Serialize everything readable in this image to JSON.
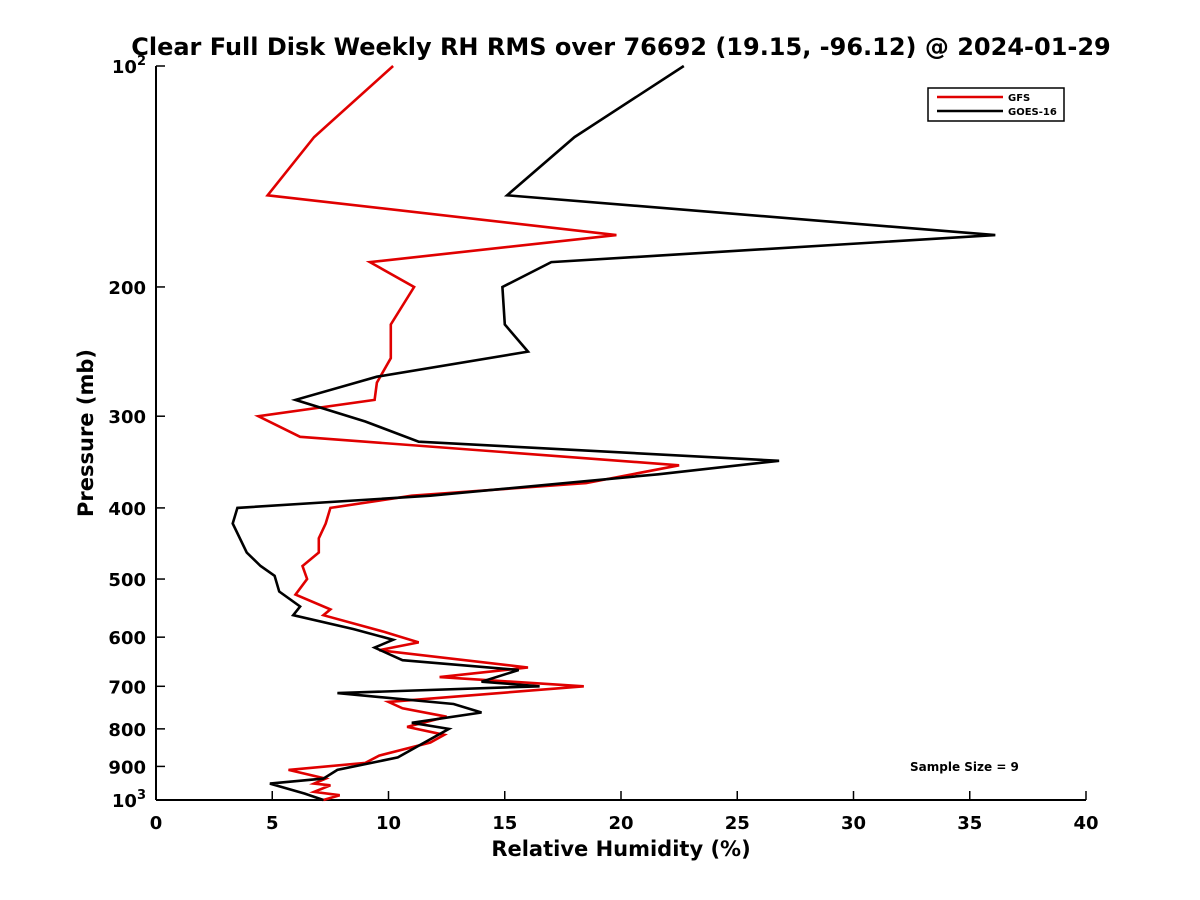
{
  "chart_data": {
    "type": "line",
    "title": "Clear Full Disk Weekly RH RMS over 76692 (19.15, -96.12) @ 2024-01-29",
    "xlabel": "Relative Humidity (%)",
    "ylabel": "Pressure (mb)",
    "xlim": [
      0,
      40
    ],
    "ylim": [
      100,
      1000
    ],
    "yscale": "log",
    "yreversed": true,
    "xticks": [
      0,
      5,
      10,
      15,
      20,
      25,
      30,
      35,
      40
    ],
    "yticks": [
      {
        "value": 100,
        "label": "10",
        "sup": "2"
      },
      {
        "value": 200,
        "label": "200"
      },
      {
        "value": 300,
        "label": "300"
      },
      {
        "value": 400,
        "label": "400"
      },
      {
        "value": 500,
        "label": "500"
      },
      {
        "value": 600,
        "label": "600"
      },
      {
        "value": 700,
        "label": "700"
      },
      {
        "value": 800,
        "label": "800"
      },
      {
        "value": 900,
        "label": "900"
      },
      {
        "value": 1000,
        "label": "10",
        "sup": "3"
      }
    ],
    "legend_position": "top-right",
    "annotation": "Sample Size = 9",
    "series": [
      {
        "name": "GFS",
        "color": "#e00000",
        "points": [
          [
            10.2,
            100
          ],
          [
            6.8,
            125
          ],
          [
            4.8,
            150
          ],
          [
            19.8,
            170
          ],
          [
            9.2,
            185
          ],
          [
            11.1,
            200
          ],
          [
            10.1,
            225
          ],
          [
            10.1,
            250
          ],
          [
            9.5,
            270
          ],
          [
            9.4,
            285
          ],
          [
            4.4,
            300
          ],
          [
            6.2,
            320
          ],
          [
            22.5,
            350
          ],
          [
            18.5,
            370
          ],
          [
            11.0,
            385
          ],
          [
            7.5,
            400
          ],
          [
            7.3,
            420
          ],
          [
            7.0,
            440
          ],
          [
            7.0,
            460
          ],
          [
            6.3,
            480
          ],
          [
            6.5,
            500
          ],
          [
            6.0,
            525
          ],
          [
            7.5,
            550
          ],
          [
            7.2,
            560
          ],
          [
            9.8,
            590
          ],
          [
            11.3,
            610
          ],
          [
            9.6,
            625
          ],
          [
            16.0,
            660
          ],
          [
            12.2,
            680
          ],
          [
            18.4,
            700
          ],
          [
            10.0,
            735
          ],
          [
            10.6,
            750
          ],
          [
            12.5,
            770
          ],
          [
            10.8,
            795
          ],
          [
            12.4,
            815
          ],
          [
            11.8,
            835
          ],
          [
            9.6,
            870
          ],
          [
            9.0,
            890
          ],
          [
            5.7,
            910
          ],
          [
            7.3,
            935
          ],
          [
            6.8,
            950
          ],
          [
            7.5,
            955
          ],
          [
            6.8,
            975
          ],
          [
            7.9,
            985
          ],
          [
            7.2,
            1000
          ]
        ]
      },
      {
        "name": "GOES-16",
        "color": "#000000",
        "points": [
          [
            22.7,
            100
          ],
          [
            18.0,
            125
          ],
          [
            15.1,
            150
          ],
          [
            36.1,
            170
          ],
          [
            17.0,
            185
          ],
          [
            14.9,
            200
          ],
          [
            15.0,
            225
          ],
          [
            16.0,
            245
          ],
          [
            9.5,
            265
          ],
          [
            6.0,
            285
          ],
          [
            9.0,
            305
          ],
          [
            11.3,
            325
          ],
          [
            26.8,
            345
          ],
          [
            21.6,
            360
          ],
          [
            11.8,
            385
          ],
          [
            3.5,
            400
          ],
          [
            3.3,
            420
          ],
          [
            3.9,
            460
          ],
          [
            4.5,
            480
          ],
          [
            5.1,
            495
          ],
          [
            5.3,
            520
          ],
          [
            6.2,
            545
          ],
          [
            5.9,
            560
          ],
          [
            8.5,
            585
          ],
          [
            10.2,
            605
          ],
          [
            9.4,
            620
          ],
          [
            10.6,
            645
          ],
          [
            15.6,
            665
          ],
          [
            14.0,
            690
          ],
          [
            16.5,
            700
          ],
          [
            7.8,
            715
          ],
          [
            12.8,
            740
          ],
          [
            14.0,
            760
          ],
          [
            11.0,
            785
          ],
          [
            12.6,
            800
          ],
          [
            11.4,
            840
          ],
          [
            10.4,
            875
          ],
          [
            7.8,
            910
          ],
          [
            7.2,
            935
          ],
          [
            4.9,
            950
          ],
          [
            6.4,
            980
          ],
          [
            7.2,
            1000
          ]
        ]
      }
    ]
  }
}
